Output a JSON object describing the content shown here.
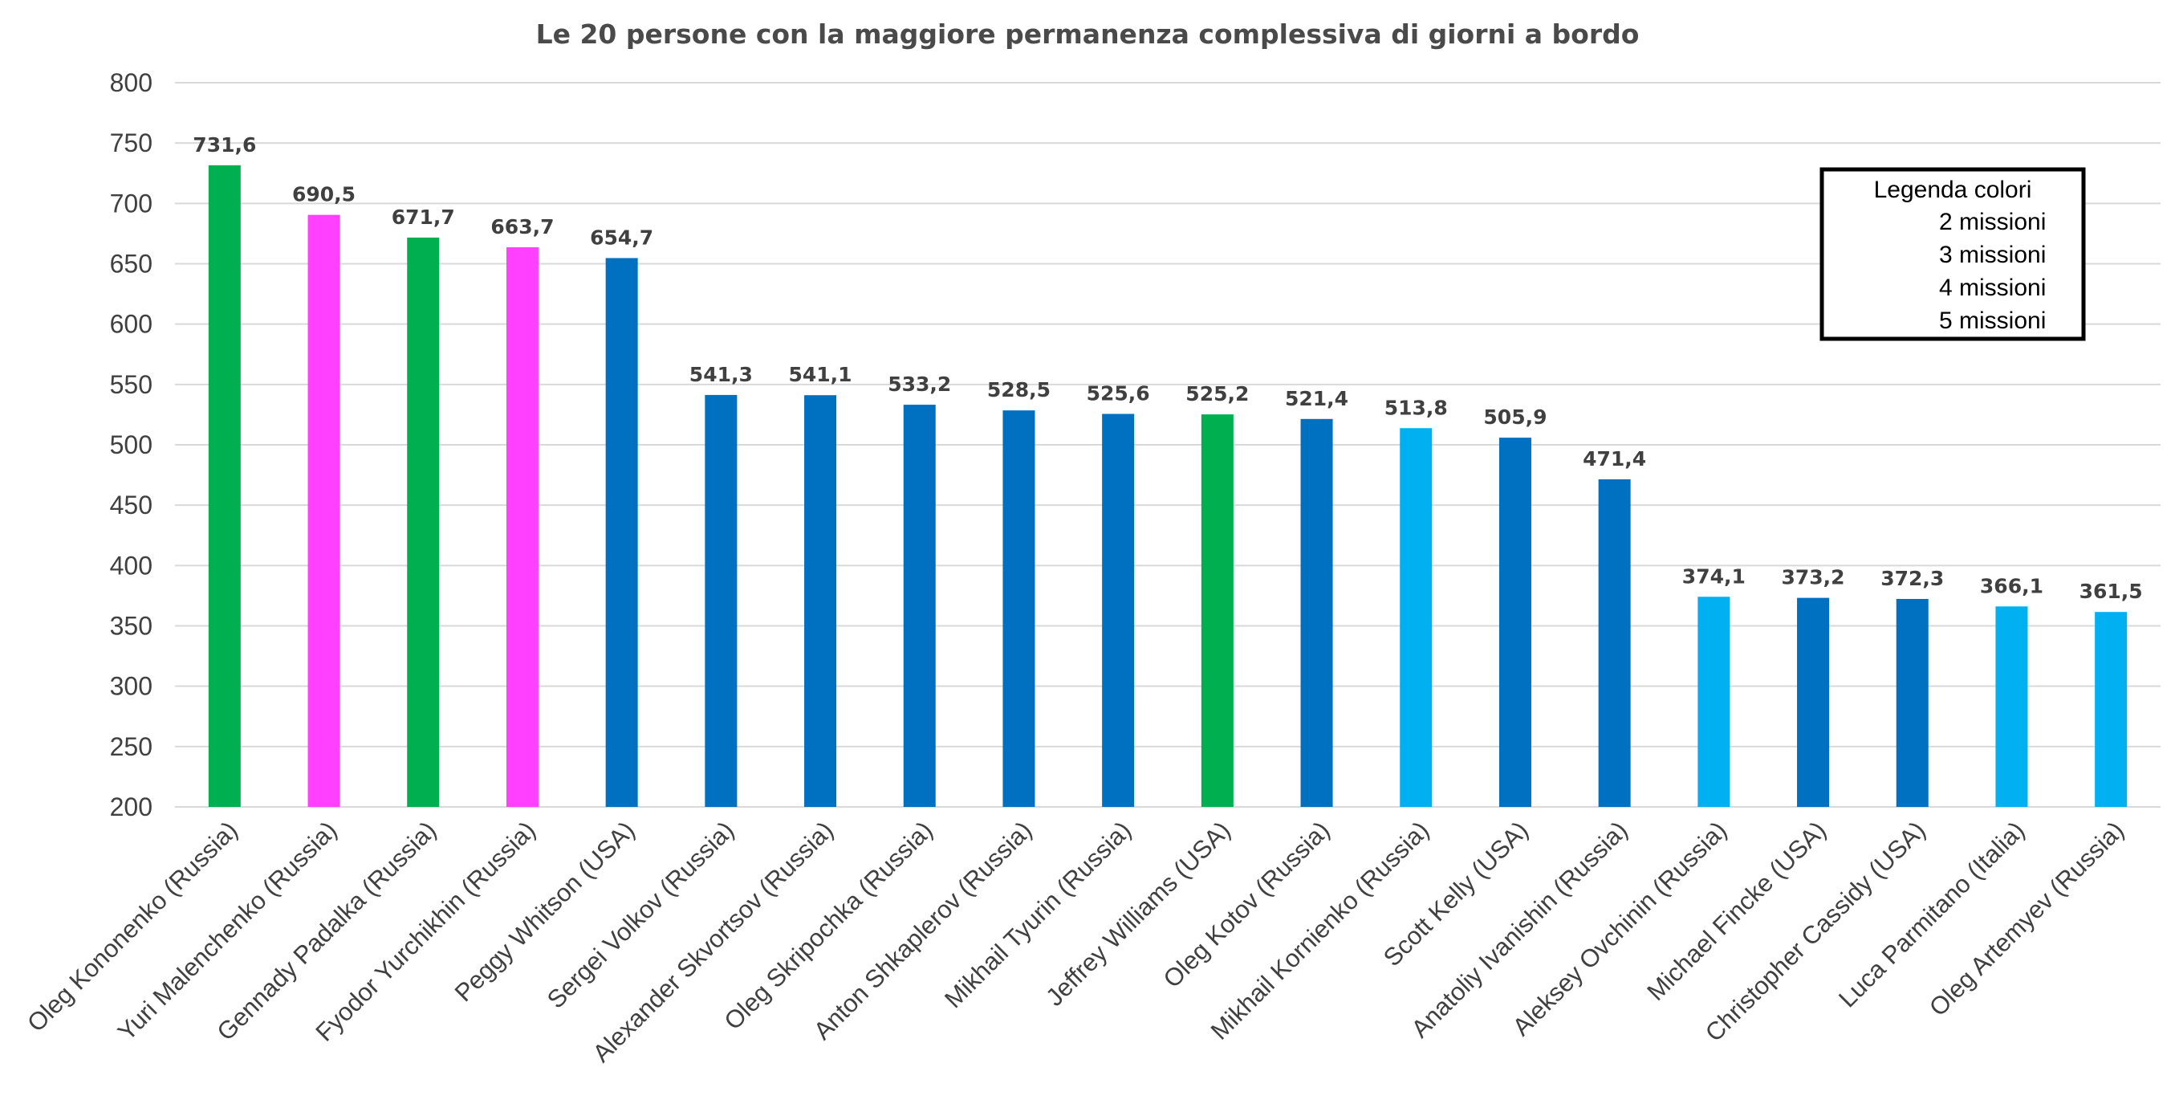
{
  "chart_data": {
    "type": "bar",
    "title": "Le 20 persone con la maggiore permanenza complessiva di giorni a bordo",
    "xlabel": "",
    "ylabel": "",
    "ylim": [
      200,
      800
    ],
    "yticks": [
      "200",
      "250",
      "300",
      "350",
      "400",
      "450",
      "500",
      "550",
      "600",
      "650",
      "700",
      "750",
      "800"
    ],
    "grid": true,
    "legend_position": "top-right",
    "categories": [
      "Oleg Kononenko (Russia)",
      "Yuri Malenchenko (Russia)",
      "Gennady Padalka (Russia)",
      "Fyodor Yurchikhin (Russia)",
      "Peggy Whitson (USA)",
      "Sergei Volkov (Russia)",
      "Alexander Skvortsov (Russia)",
      "Oleg Skripochka (Russia)",
      "Anton Shkaplerov (Russia)",
      "Mikhail Tyurin (Russia)",
      "Jeffrey Williams (USA)",
      "Oleg Kotov (Russia)",
      "Mikhail Kornienko (Russia)",
      "Scott Kelly (USA)",
      "Anatoliy Ivanishin (Russia)",
      "Aleksey Ovchinin (Russia)",
      "Michael Fincke (USA)",
      "Christopher Cassidy (USA)",
      "Luca Parmitano (Italia)",
      "Oleg Artemyev (Russia)"
    ],
    "values": [
      731.6,
      690.5,
      671.7,
      663.7,
      654.7,
      541.3,
      541.1,
      533.2,
      528.5,
      525.6,
      525.2,
      521.4,
      513.8,
      505.9,
      471.4,
      374.1,
      373.2,
      372.3,
      366.1,
      361.5
    ],
    "value_labels": [
      "731,6",
      "690,5",
      "671,7",
      "663,7",
      "654,7",
      "541,3",
      "541,1",
      "533,2",
      "528,5",
      "525,6",
      "525,2",
      "521,4",
      "513,8",
      "505,9",
      "471,4",
      "374,1",
      "373,2",
      "372,3",
      "366,1",
      "361,5"
    ],
    "missions": [
      4,
      5,
      4,
      5,
      3,
      3,
      3,
      3,
      3,
      3,
      4,
      3,
      2,
      3,
      3,
      2,
      3,
      3,
      2,
      2
    ],
    "legend": {
      "title": "Legenda colori",
      "entries": [
        {
          "missions": 2,
          "label": "2 missioni",
          "color": "#00b0f0"
        },
        {
          "missions": 3,
          "label": "3 missioni",
          "color": "#0070c0"
        },
        {
          "missions": 4,
          "label": "4 missioni",
          "color": "#00b050"
        },
        {
          "missions": 5,
          "label": "5 missioni",
          "color": "#ff40ff"
        }
      ]
    }
  }
}
